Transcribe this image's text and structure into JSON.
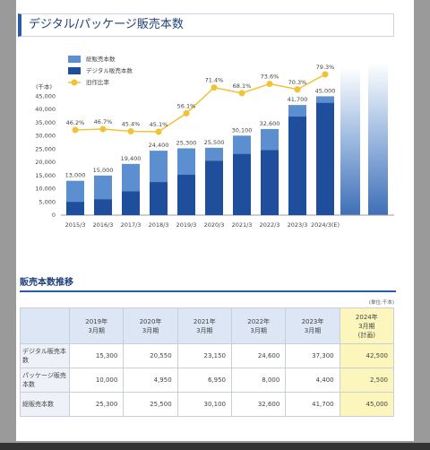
{
  "header": {
    "title": "デジタル/パッケージ販売本数"
  },
  "chart_data": {
    "type": "bar",
    "y_unit": "(千本)",
    "categories": [
      "2015/3",
      "2016/3",
      "2017/3",
      "2018/3",
      "2019/3",
      "2020/3",
      "2021/3",
      "2022/3",
      "2023/3",
      "2024/3(E)"
    ],
    "series": [
      {
        "name": "総販売本数",
        "color": "#5b8fd0",
        "values": [
          13000,
          15000,
          19400,
          24400,
          25300,
          25500,
          30100,
          32600,
          41700,
          45000
        ],
        "value_labels": [
          "13,000",
          "15,000",
          "19,400",
          "24,400",
          "25,300",
          "25,500",
          "30,100",
          "32,600",
          "41,700",
          "45,000"
        ]
      },
      {
        "name": "デジタル販売本数",
        "color": "#1f4f9c",
        "values": [
          5000,
          6000,
          9000,
          12500,
          15300,
          20550,
          23150,
          24600,
          37300,
          42500
        ]
      },
      {
        "name": "旧作比率",
        "color": "#f1c232",
        "axis": "y2",
        "type": "line",
        "values": [
          46.2,
          46.7,
          45.4,
          45.1,
          56.1,
          71.4,
          68.1,
          73.6,
          70.3,
          79.3
        ],
        "value_labels": [
          "46.2%",
          "46.7%",
          "45.4%",
          "45.1%",
          "56.1%",
          "71.4%",
          "68.1%",
          "73.6%",
          "70.3%",
          "79.3%"
        ]
      }
    ],
    "ylim": [
      0,
      56000
    ],
    "yticks": [
      0,
      {
        "value": 5000,
        "label": "5,000"
      },
      {
        "value": 10000,
        "label": "10,000"
      },
      {
        "value": 15000,
        "label": "15,000"
      },
      {
        "value": 20000,
        "label": "20,000"
      },
      {
        "value": 25000,
        "label": "25,000"
      },
      {
        "value": 30000,
        "label": "30,000"
      },
      {
        "value": 35000,
        "label": "35,000"
      },
      {
        "value": 40000,
        "label": "40,000"
      },
      {
        "value": 45000,
        "label": "45,000"
      }
    ],
    "y2lim": [
      -4.5,
      83.5
    ],
    "grid": false,
    "legend": "top-left"
  },
  "table": {
    "title": "販売本数推移",
    "unit": "(単位:千本)",
    "header": [
      [
        "2019年",
        "3月期"
      ],
      [
        "2020年",
        "3月期"
      ],
      [
        "2021年",
        "3月期"
      ],
      [
        "2022年",
        "3月期"
      ],
      [
        "2023年",
        "3月期"
      ],
      [
        "2024年",
        "3月期",
        "(計画)"
      ]
    ],
    "rows": [
      [
        "デジタル販売本数",
        "15,300",
        "20,550",
        "23,150",
        "24,600",
        "37,300",
        "42,500"
      ],
      [
        "パッケージ販売本数",
        "10,000",
        "4,950",
        "6,950",
        "8,000",
        "4,400",
        "2,500"
      ],
      [
        "総販売本数",
        "25,300",
        "25,500",
        "30,100",
        "32,600",
        "41,700",
        "45,000"
      ]
    ]
  }
}
